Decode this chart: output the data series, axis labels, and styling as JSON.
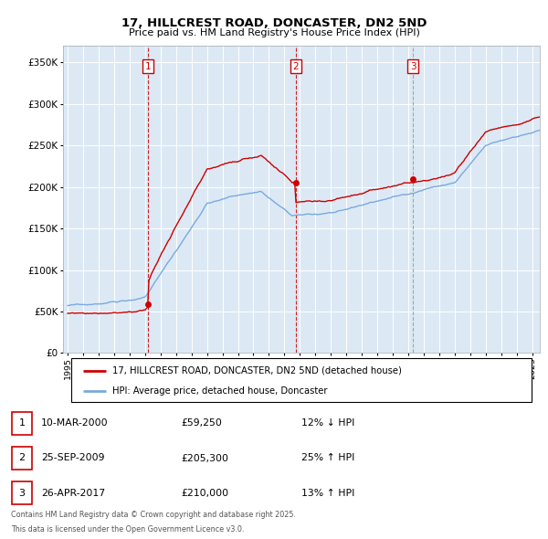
{
  "title": "17, HILLCREST ROAD, DONCASTER, DN2 5ND",
  "subtitle": "Price paid vs. HM Land Registry's House Price Index (HPI)",
  "sales": [
    {
      "label": "1",
      "date_str": "10-MAR-2000",
      "date_x": 2000.19,
      "price": 59250,
      "vline_style": "red"
    },
    {
      "label": "2",
      "date_str": "25-SEP-2009",
      "date_x": 2009.73,
      "price": 205300,
      "vline_style": "red"
    },
    {
      "label": "3",
      "date_str": "26-APR-2017",
      "date_x": 2017.32,
      "price": 210000,
      "vline_style": "gray"
    }
  ],
  "legend_red": "17, HILLCREST ROAD, DONCASTER, DN2 5ND (detached house)",
  "legend_blue": "HPI: Average price, detached house, Doncaster",
  "footer_line1": "Contains HM Land Registry data © Crown copyright and database right 2025.",
  "footer_line2": "This data is licensed under the Open Government Licence v3.0.",
  "ylim": [
    0,
    370000
  ],
  "xlim": [
    1994.7,
    2025.5
  ],
  "bg_color": "#dce9f5",
  "red_color": "#cc0000",
  "blue_color": "#7aaadd",
  "table_rows": [
    [
      "1",
      "10-MAR-2000",
      "£59,250",
      "12% ↓ HPI"
    ],
    [
      "2",
      "25-SEP-2009",
      "£205,300",
      "25% ↑ HPI"
    ],
    [
      "3",
      "26-APR-2017",
      "£210,000",
      "13% ↑ HPI"
    ]
  ]
}
